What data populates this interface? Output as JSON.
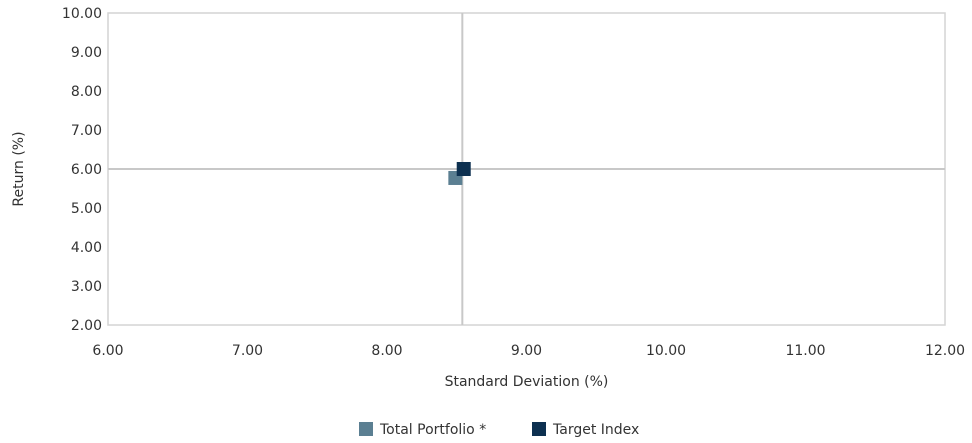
{
  "chart_data": {
    "type": "scatter",
    "title": "",
    "xlabel": "Standard Deviation (%)",
    "ylabel": "Return  (%)",
    "xlim": [
      6.0,
      12.0
    ],
    "ylim": [
      2.0,
      10.0
    ],
    "x_ticks": [
      "6.00",
      "7.00",
      "8.00",
      "9.00",
      "10.00",
      "11.00",
      "12.00"
    ],
    "y_ticks": [
      "2.00",
      "3.00",
      "4.00",
      "5.00",
      "6.00",
      "7.00",
      "8.00",
      "9.00",
      "10.00"
    ],
    "x_tick_values": [
      6,
      7,
      8,
      9,
      10,
      11,
      12
    ],
    "y_tick_values": [
      2,
      3,
      4,
      5,
      6,
      7,
      8,
      9,
      10
    ],
    "crosshair": {
      "x": 8.54,
      "y": 6.0
    },
    "grid": false,
    "legend_position": "bottom-center",
    "series": [
      {
        "name": "Total Portfolio *",
        "color": "#5b7f92",
        "marker": "square",
        "points": [
          {
            "x": 8.49,
            "y": 5.77
          }
        ]
      },
      {
        "name": "Target Index",
        "color": "#0d3050",
        "marker": "square",
        "points": [
          {
            "x": 8.55,
            "y": 6.0
          }
        ]
      }
    ]
  }
}
